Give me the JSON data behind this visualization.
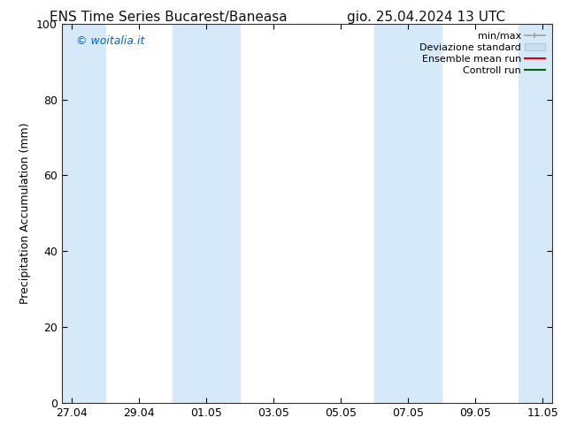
{
  "title_left": "ENS Time Series Bucarest/Baneasa",
  "title_right": "gio. 25.04.2024 13 UTC",
  "ylabel": "Precipitation Accumulation (mm)",
  "watermark": "© woitalia.it",
  "watermark_color": "#0066cc",
  "ylim": [
    0,
    100
  ],
  "yticks": [
    0,
    20,
    40,
    60,
    80,
    100
  ],
  "xtick_labels": [
    "27.04",
    "29.04",
    "01.05",
    "03.05",
    "05.05",
    "07.05",
    "09.05",
    "11.05"
  ],
  "x_values": [
    0,
    2,
    4,
    6,
    8,
    10,
    12,
    14
  ],
  "xlim": [
    -0.3,
    14.3
  ],
  "shade_bands": [
    [
      -0.3,
      1.0
    ],
    [
      3.0,
      5.0
    ],
    [
      9.0,
      11.0
    ],
    [
      13.3,
      14.3
    ]
  ],
  "shade_color": "#d6e9f8",
  "background_color": "#ffffff",
  "legend_labels": [
    "min/max",
    "Deviazione standard",
    "Ensemble mean run",
    "Controll run"
  ],
  "legend_minmax_color": "#a0a0a0",
  "legend_std_color": "#c8dff0",
  "legend_ens_color": "#dd0000",
  "legend_ctrl_color": "#006600",
  "title_fontsize": 11,
  "ylabel_fontsize": 9,
  "tick_fontsize": 9,
  "legend_fontsize": 8,
  "watermark_fontsize": 9
}
